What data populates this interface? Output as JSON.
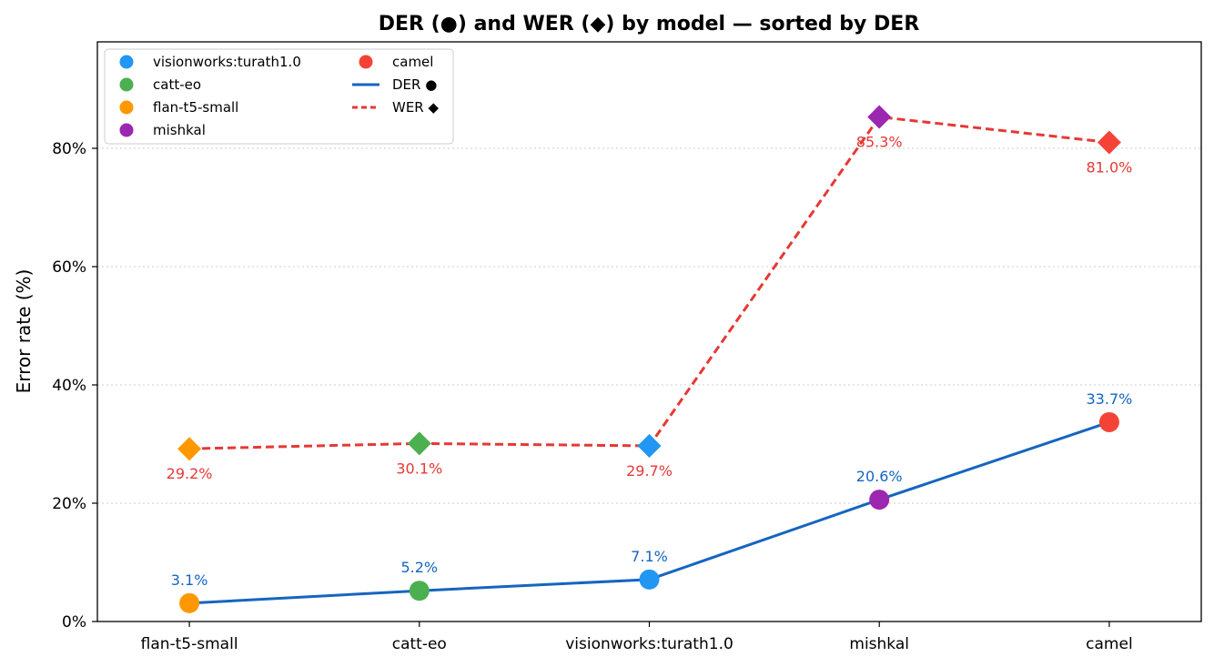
{
  "chart_data": {
    "type": "line",
    "title": "DER (●) and WER (◆) by model  —  sorted by DER",
    "ylabel": "Error rate (%)",
    "xlabel": "",
    "categories": [
      "flan-t5-small",
      "catt-eo",
      "visionworks:turath1.0",
      "mishkal",
      "camel"
    ],
    "category_colors": [
      "#ff9800",
      "#4caf50",
      "#2196f3",
      "#9c27b0",
      "#f44336"
    ],
    "series": [
      {
        "name": "DER ●",
        "marker": "circle",
        "line_style": "solid",
        "color": "#1565c0",
        "values": [
          3.1,
          5.2,
          7.1,
          20.6,
          33.7
        ],
        "labels": [
          "3.1%",
          "5.2%",
          "7.1%",
          "20.6%",
          "33.7%"
        ]
      },
      {
        "name": "WER ◆",
        "marker": "diamond",
        "line_style": "dashed",
        "color": "#e53935",
        "values": [
          29.2,
          30.1,
          29.7,
          85.3,
          81.0
        ],
        "labels": [
          "29.2%",
          "30.1%",
          "29.7%",
          "85.3%",
          "81.0%"
        ]
      }
    ],
    "ylim": [
      0,
      98
    ],
    "yticks": [
      0,
      20,
      40,
      60,
      80
    ],
    "ytick_labels": [
      "0%",
      "20%",
      "40%",
      "60%",
      "80%"
    ],
    "grid": "y-dotted",
    "legend": {
      "placement": "top-left",
      "entries": [
        {
          "label": "visionworks:turath1.0",
          "type": "dot",
          "color": "#2196f3"
        },
        {
          "label": "catt-eo",
          "type": "dot",
          "color": "#4caf50"
        },
        {
          "label": "flan-t5-small",
          "type": "dot",
          "color": "#ff9800"
        },
        {
          "label": "mishkal",
          "type": "dot",
          "color": "#9c27b0"
        },
        {
          "label": "camel",
          "type": "dot",
          "color": "#f44336"
        },
        {
          "label": "DER ●",
          "type": "solid-line",
          "color": "#1565c0"
        },
        {
          "label": "WER ◆",
          "type": "dashed-line",
          "color": "#e53935"
        }
      ]
    }
  }
}
